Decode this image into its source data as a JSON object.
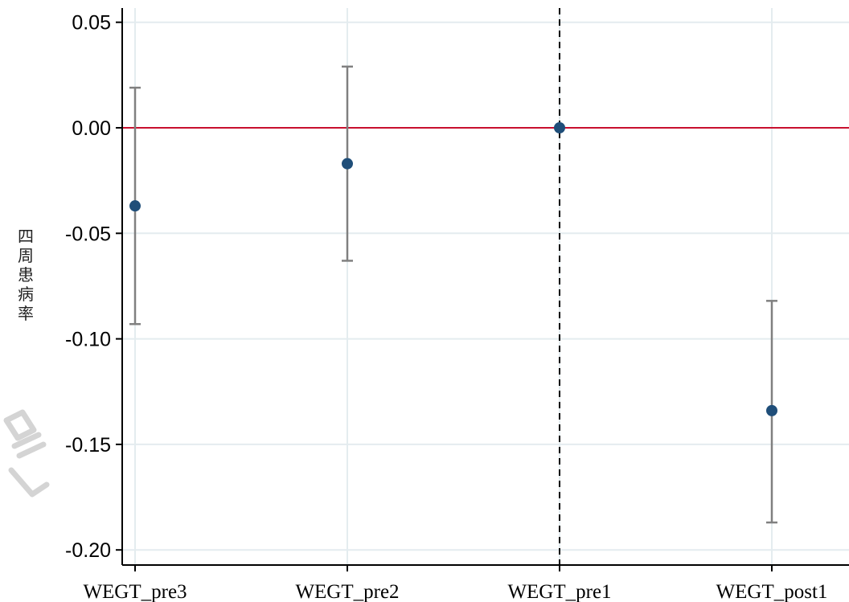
{
  "chart_data": {
    "type": "scatter",
    "subtype": "coefficient-plot-with-confidence-intervals",
    "title": "",
    "xlabel": "",
    "ylabel": "四周患病率",
    "categories": [
      "WEGT_pre3",
      "WEGT_pre2",
      "WEGT_pre1",
      "WEGT_post1"
    ],
    "series": [
      {
        "estimates": [
          -0.037,
          -0.017,
          0.0,
          -0.134
        ],
        "ci_lower": [
          -0.093,
          -0.063,
          0.0,
          -0.187
        ],
        "ci_upper": [
          0.019,
          0.029,
          0.0,
          -0.082
        ]
      }
    ],
    "ylim": [
      -0.21,
      0.055
    ],
    "yticks": [
      0.05,
      0.0,
      -0.05,
      -0.1,
      -0.15,
      -0.2
    ],
    "ytick_labels": [
      "0.05",
      "0.00",
      "-0.05",
      "-0.10",
      "-0.15",
      "-0.20"
    ],
    "reference_line_y": 0.0,
    "reference_line_x_category": "WEGT_pre1",
    "grid": true,
    "legend": "none"
  },
  "colors": {
    "point": "#1f4e79",
    "errorbar": "#808080",
    "reference_hline": "#c8102e",
    "reference_vline": "#000000",
    "grid": "#e4ecef",
    "axis": "#000000",
    "watermark": "#d4d4d4"
  }
}
